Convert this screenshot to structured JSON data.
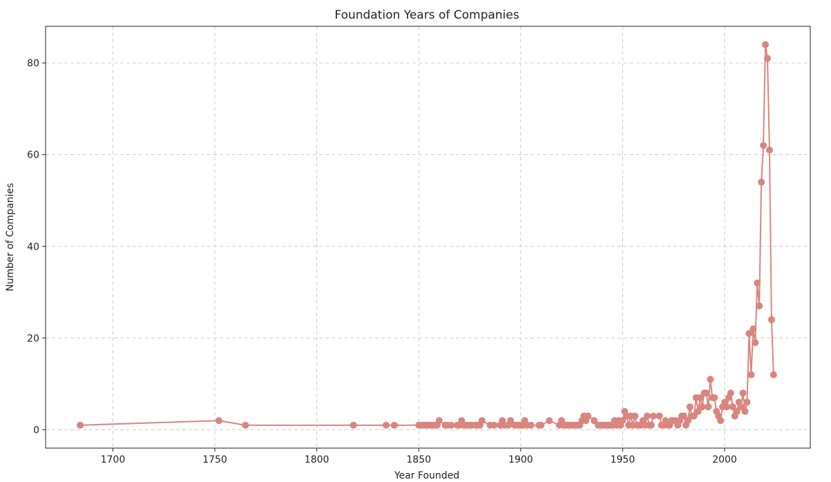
{
  "chart_data": {
    "type": "line",
    "title": "Foundation Years of Companies",
    "xlabel": "Year Founded",
    "ylabel": "Number of Companies",
    "xlim": [
      1667,
      2042
    ],
    "ylim": [
      -4,
      88
    ],
    "xticks": [
      1700,
      1750,
      1800,
      1850,
      1900,
      1950,
      2000
    ],
    "yticks": [
      0,
      20,
      40,
      60,
      80
    ],
    "grid": true,
    "color": "#d98580",
    "series": [
      {
        "x": [
          1684,
          1752,
          1765,
          1818,
          1834,
          1838,
          1850,
          1851,
          1852,
          1853,
          1854,
          1855,
          1856,
          1857,
          1858,
          1859,
          1860,
          1863,
          1864,
          1866,
          1869,
          1870,
          1871,
          1872,
          1873,
          1874,
          1875,
          1876,
          1878,
          1879,
          1880,
          1881,
          1885,
          1887,
          1890,
          1891,
          1892,
          1894,
          1895,
          1897,
          1898,
          1899,
          1900,
          1901,
          1902,
          1903,
          1905,
          1909,
          1910,
          1914,
          1919,
          1920,
          1921,
          1922,
          1923,
          1924,
          1925,
          1926,
          1927,
          1928,
          1929,
          1930,
          1931,
          1932,
          1933,
          1936,
          1938,
          1939,
          1940,
          1941,
          1942,
          1943,
          1944,
          1945,
          1946,
          1947,
          1948,
          1949,
          1950,
          1951,
          1952,
          1953,
          1954,
          1955,
          1956,
          1957,
          1958,
          1959,
          1960,
          1961,
          1962,
          1963,
          1964,
          1965,
          1968,
          1969,
          1970,
          1971,
          1972,
          1973,
          1974,
          1975,
          1976,
          1977,
          1978,
          1979,
          1980,
          1981,
          1982,
          1983,
          1984,
          1985,
          1986,
          1987,
          1988,
          1989,
          1990,
          1991,
          1992,
          1993,
          1994,
          1995,
          1996,
          1997,
          1998,
          1999,
          2000,
          2001,
          2002,
          2003,
          2004,
          2005,
          2006,
          2007,
          2008,
          2009,
          2010,
          2011,
          2012,
          2013,
          2014,
          2015,
          2016,
          2017,
          2018,
          2019,
          2020,
          2021,
          2022,
          2023,
          2024
        ],
        "values": [
          1,
          2,
          1,
          1,
          1,
          1,
          1,
          1,
          1,
          1,
          1,
          1,
          1,
          1,
          1,
          1,
          2,
          1,
          1,
          1,
          1,
          1,
          2,
          1,
          1,
          1,
          1,
          1,
          1,
          1,
          1,
          2,
          1,
          1,
          1,
          2,
          1,
          1,
          2,
          1,
          1,
          1,
          1,
          1,
          2,
          1,
          1,
          1,
          1,
          2,
          1,
          2,
          1,
          1,
          1,
          1,
          1,
          1,
          1,
          1,
          1,
          2,
          3,
          2,
          3,
          2,
          1,
          1,
          1,
          1,
          1,
          1,
          1,
          1,
          2,
          1,
          2,
          1,
          2,
          4,
          3,
          1,
          3,
          1,
          3,
          1,
          1,
          1,
          2,
          1,
          3,
          1,
          1,
          3,
          3,
          1,
          1,
          2,
          1,
          1,
          2,
          2,
          2,
          1,
          2,
          3,
          3,
          1,
          2,
          5,
          3,
          3,
          7,
          4,
          7,
          5,
          8,
          8,
          5,
          11,
          7,
          7,
          4,
          3,
          2,
          5,
          6,
          5,
          7,
          8,
          5,
          3,
          4,
          6,
          5,
          8,
          4,
          6,
          21,
          12,
          22,
          19,
          32,
          27,
          54,
          62,
          84,
          81,
          61,
          24,
          12
        ]
      }
    ]
  }
}
